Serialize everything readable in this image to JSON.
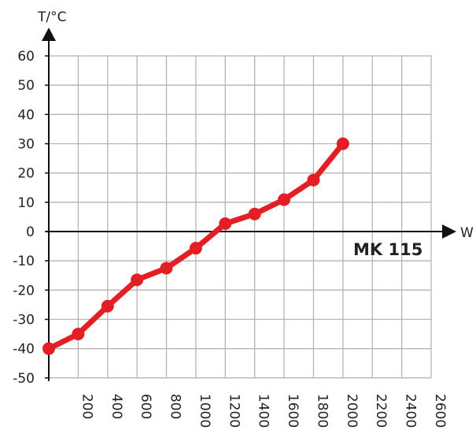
{
  "chart_data": {
    "type": "line",
    "x_unit_label": "W",
    "y_unit_label": "T/°C",
    "annotation": "MK 115",
    "x_ticks": [
      200,
      400,
      600,
      800,
      1000,
      1200,
      1400,
      1600,
      1800,
      2000,
      2200,
      2400,
      2600
    ],
    "y_ticks": [
      60,
      50,
      40,
      30,
      20,
      10,
      0,
      -10,
      -20,
      -30,
      -40,
      -50
    ],
    "xlim": [
      0,
      2600
    ],
    "ylim": [
      -50,
      60
    ],
    "grid": true,
    "line_color": "#e31e24",
    "series": [
      {
        "x": [
          0,
          200,
          400,
          600,
          800,
          1000,
          1200,
          1400,
          1600,
          1800,
          2000
        ],
        "y": [
          -40,
          -35,
          -25.5,
          -16.5,
          -12.5,
          -5.7,
          2.7,
          6,
          10.9,
          17.6,
          30
        ]
      }
    ]
  }
}
